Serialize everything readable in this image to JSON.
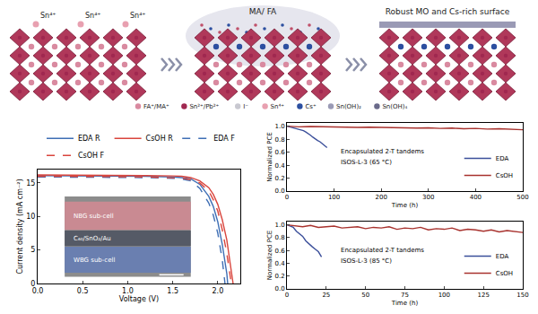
{
  "diagram": {
    "panel1_ions": [
      "Sn⁴⁺",
      "Sn⁴⁺",
      "Sn⁴⁺"
    ],
    "panel2_label": "MA/ FA",
    "panel3_label": "Robust MO and Cs-rich surface",
    "legend": [
      {
        "label": "FA⁺/MA⁺",
        "color": "#d98aa0"
      },
      {
        "label": "Sn²⁺/Pb²⁺",
        "color": "#a02850"
      },
      {
        "label": "I⁻",
        "color": "#c8c8d0"
      },
      {
        "label": "Sn⁴⁺",
        "color": "#e8a0b0"
      },
      {
        "label": "Cs⁺",
        "color": "#2c4fa0"
      },
      {
        "label": "Sn(OH)₂",
        "color": "#9a9ab5"
      },
      {
        "label": "Sn(OH)₄",
        "color": "#6a6a8a"
      }
    ]
  },
  "chart_data": [
    {
      "type": "line",
      "xlabel": "Voltage (V)",
      "ylabel": "Current density (mA cm⁻²)",
      "xlim": [
        0,
        2.25
      ],
      "xticks": [
        {
          "value": 0,
          "label": "0.0"
        },
        0.5,
        {
          "value": 1,
          "label": "1.0"
        },
        1.5,
        {
          "value": 2,
          "label": "2.0"
        }
      ],
      "ylim": [
        0,
        17
      ],
      "yticks": [
        0,
        5,
        10,
        15
      ],
      "grid": false,
      "legend": "top",
      "annotations": [
        "NBG sub-cell",
        "C₆₀/SnO₂/Au",
        "WBG sub-cell"
      ],
      "series": [
        {
          "name": "EDA R",
          "color": "#3f6fb5",
          "line_style": "solid",
          "x": [
            0,
            0.4,
            0.8,
            1.2,
            1.5,
            1.6,
            1.7,
            1.8,
            1.9,
            1.95,
            2.0,
            2.05,
            2.1,
            2.11
          ],
          "values": [
            16.1,
            16.1,
            16.05,
            16.0,
            15.9,
            15.8,
            15.6,
            14.8,
            13.0,
            11.5,
            9.2,
            5.8,
            1.5,
            0
          ]
        },
        {
          "name": "CsOH R",
          "color": "#d9453d",
          "line_style": "solid",
          "x": [
            0,
            0.4,
            0.8,
            1.2,
            1.5,
            1.6,
            1.7,
            1.8,
            1.9,
            1.95,
            2.0,
            2.05,
            2.1,
            2.14,
            2.17
          ],
          "values": [
            16.2,
            16.2,
            16.15,
            16.1,
            16.05,
            16.0,
            15.8,
            15.3,
            14.3,
            13.3,
            11.8,
            9.5,
            6.5,
            3.0,
            0
          ]
        },
        {
          "name": "EDA F",
          "color": "#3f6fb5",
          "line_style": "dashed",
          "x": [
            0,
            0.4,
            0.8,
            1.2,
            1.5,
            1.6,
            1.7,
            1.8,
            1.9,
            1.95,
            2.0,
            2.05,
            2.08
          ],
          "values": [
            15.9,
            15.9,
            15.85,
            15.8,
            15.7,
            15.6,
            15.3,
            14.2,
            12.0,
            10.2,
            7.5,
            3.5,
            0
          ]
        },
        {
          "name": "CsOH F",
          "color": "#d9453d",
          "line_style": "dashed",
          "x": [
            0,
            0.4,
            0.8,
            1.2,
            1.5,
            1.6,
            1.7,
            1.8,
            1.9,
            1.95,
            2.0,
            2.05,
            2.1,
            2.15
          ],
          "values": [
            16.0,
            16.0,
            15.95,
            15.9,
            15.8,
            15.7,
            15.5,
            15.0,
            13.8,
            12.5,
            10.8,
            8.0,
            4.5,
            0
          ]
        }
      ]
    },
    {
      "type": "line",
      "xlabel": "Time (h)",
      "ylabel": "Normalized PCE",
      "xlim": [
        0,
        500
      ],
      "xticks": [
        0,
        100,
        200,
        300,
        400,
        500
      ],
      "ylim": [
        0,
        1.05
      ],
      "yticks": [
        {
          "value": 0,
          "label": "0.0"
        },
        0.2,
        0.4,
        0.6,
        0.8,
        {
          "value": 1,
          "label": "1.0"
        }
      ],
      "grid": false,
      "legend": "bottom right",
      "annotations": [
        "Encapsulated 2-T tandems",
        "ISOS-L-3 (65 °C)"
      ],
      "series": [
        {
          "name": "EDA",
          "color": "#3b4f9a",
          "line_style": "solid",
          "x": [
            0,
            5,
            10,
            15,
            20,
            25,
            30,
            35,
            40,
            45,
            50,
            55,
            60,
            65,
            70,
            75,
            80,
            85
          ],
          "values": [
            1.0,
            0.99,
            0.98,
            0.98,
            0.97,
            0.96,
            0.95,
            0.93,
            0.91,
            0.89,
            0.86,
            0.83,
            0.8,
            0.78,
            0.76,
            0.73,
            0.7,
            0.67
          ]
        },
        {
          "name": "CsOH",
          "color": "#a8322e",
          "line_style": "solid",
          "x": [
            0,
            25,
            50,
            75,
            100,
            125,
            150,
            175,
            200,
            225,
            250,
            275,
            300,
            325,
            350,
            375,
            400,
            425,
            450,
            475,
            500
          ],
          "values": [
            1.0,
            0.99,
            0.995,
            0.99,
            0.985,
            0.99,
            0.98,
            0.985,
            0.98,
            0.975,
            0.98,
            0.97,
            0.975,
            0.965,
            0.97,
            0.96,
            0.965,
            0.955,
            0.96,
            0.95,
            0.945
          ]
        }
      ]
    },
    {
      "type": "line",
      "xlabel": "Time (h)",
      "ylabel": "Normalized PCE",
      "xlim": [
        0,
        150
      ],
      "xticks": [
        0,
        25,
        50,
        75,
        100,
        125,
        150
      ],
      "ylim": [
        0,
        1.05
      ],
      "yticks": [
        {
          "value": 0,
          "label": "0.0"
        },
        0.2,
        0.4,
        0.6,
        0.8,
        {
          "value": 1,
          "label": "1.0"
        }
      ],
      "grid": false,
      "legend": "bottom right",
      "annotations": [
        "Encapsulated 2-T tandems",
        "ISOS-L-3 (85 °C)"
      ],
      "series": [
        {
          "name": "EDA",
          "color": "#3b4f9a",
          "line_style": "solid",
          "x": [
            0,
            2,
            4,
            6,
            8,
            10,
            12,
            14,
            16,
            18,
            20,
            22
          ],
          "values": [
            1.0,
            0.98,
            0.96,
            0.9,
            0.86,
            0.82,
            0.75,
            0.7,
            0.66,
            0.62,
            0.58,
            0.5
          ]
        },
        {
          "name": "CsOH",
          "color": "#a8322e",
          "line_style": "solid",
          "x": [
            0,
            5,
            10,
            15,
            20,
            25,
            30,
            35,
            40,
            45,
            50,
            55,
            60,
            65,
            70,
            75,
            80,
            85,
            90,
            95,
            100,
            105,
            110,
            115,
            120,
            125,
            130,
            135,
            140,
            145,
            150
          ],
          "values": [
            1.0,
            0.98,
            0.97,
            0.99,
            0.96,
            0.97,
            0.98,
            0.95,
            0.96,
            0.97,
            0.94,
            0.96,
            0.95,
            0.97,
            0.93,
            0.95,
            0.94,
            0.96,
            0.92,
            0.94,
            0.93,
            0.95,
            0.91,
            0.93,
            0.92,
            0.9,
            0.92,
            0.89,
            0.91,
            0.9,
            0.88
          ]
        }
      ]
    }
  ]
}
